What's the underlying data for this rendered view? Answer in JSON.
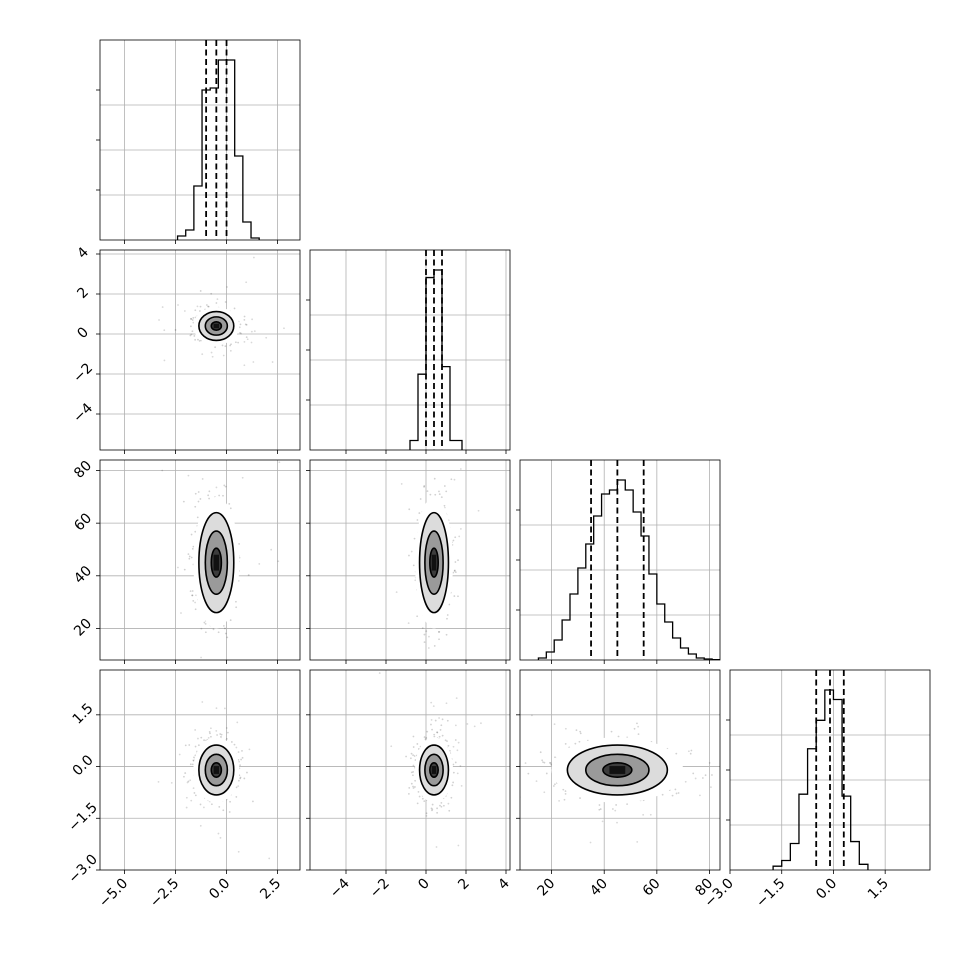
{
  "chart_data": {
    "type": "corner",
    "parameters": [
      {
        "range": [
          -6.2,
          3.6
        ],
        "ticks": [
          -5.0,
          -2.5,
          0.0,
          2.5
        ],
        "tick_labels": [
          "−5.0",
          "−2.5",
          "0.0",
          "2.5"
        ],
        "bins": [
          -2.4,
          -2.0,
          -1.6,
          -1.2,
          -0.8,
          -0.4,
          0.0,
          0.4,
          0.8,
          1.2,
          1.6
        ],
        "counts": [
          0.02,
          0.05,
          0.27,
          0.75,
          0.76,
          0.9,
          0.9,
          0.42,
          0.09,
          0.01
        ],
        "quantiles": [
          -1.0,
          -0.5,
          0.0
        ],
        "center": -0.5,
        "sigma": 0.45
      },
      {
        "range": [
          -5.8,
          4.2
        ],
        "ticks": [
          -4,
          -2,
          0,
          2,
          4
        ],
        "tick_labels": [
          "−4",
          "−2",
          "0",
          "2",
          "4"
        ],
        "bins": [
          -0.8,
          -0.4,
          0.0,
          0.4,
          0.8,
          1.2,
          1.8
        ],
        "counts": [
          0.05,
          0.4,
          0.91,
          0.95,
          0.44,
          0.05
        ],
        "quantiles": [
          0.0,
          0.4,
          0.8
        ],
        "center": 0.4,
        "sigma": 0.38
      },
      {
        "range": [
          8,
          84
        ],
        "ticks": [
          20,
          40,
          60,
          80
        ],
        "tick_labels": [
          "20",
          "40",
          "60",
          "80"
        ],
        "bins": [
          15,
          18,
          21,
          24,
          27,
          30,
          33,
          36,
          39,
          42,
          45,
          48,
          51,
          54,
          57,
          60,
          63,
          66,
          69,
          72,
          75,
          78,
          81,
          84
        ],
        "counts": [
          0.01,
          0.04,
          0.1,
          0.2,
          0.33,
          0.46,
          0.58,
          0.72,
          0.83,
          0.85,
          0.9,
          0.85,
          0.74,
          0.62,
          0.43,
          0.28,
          0.19,
          0.11,
          0.06,
          0.03,
          0.01,
          0.005,
          0.002
        ],
        "quantiles": [
          35,
          45,
          55
        ],
        "center": 45,
        "sigma": 10
      },
      {
        "range": [
          -3.0,
          2.8
        ],
        "ticks": [
          -3.0,
          -1.5,
          0.0,
          1.5
        ],
        "tick_labels": [
          "−3.0",
          "−1.5",
          "0.0",
          "1.5"
        ],
        "bins": [
          -1.75,
          -1.5,
          -1.25,
          -1.0,
          -0.75,
          -0.5,
          -0.25,
          0.0,
          0.25,
          0.5,
          0.75,
          1.0
        ],
        "counts": [
          0.02,
          0.05,
          0.14,
          0.4,
          0.64,
          0.79,
          0.95,
          0.9,
          0.39,
          0.15,
          0.03
        ],
        "quantiles": [
          -0.5,
          -0.1,
          0.3
        ],
        "center": -0.1,
        "sigma": 0.38
      }
    ]
  }
}
